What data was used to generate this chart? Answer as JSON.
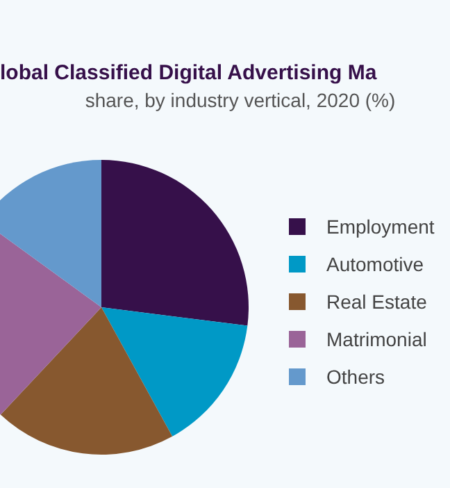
{
  "chart_data": {
    "type": "pie",
    "title": "lobal Classified Digital Advertising Ma",
    "subtitle": "share, by industry vertical, 2020 (%)",
    "categories": [
      "Employment",
      "Automotive",
      "Real Estate",
      "Matrimonial",
      "Others"
    ],
    "values": [
      27,
      15,
      20,
      23,
      15
    ],
    "colors": [
      "#36104a",
      "#0099c6",
      "#87582f",
      "#9a6498",
      "#6499cc"
    ],
    "legend": "right"
  }
}
